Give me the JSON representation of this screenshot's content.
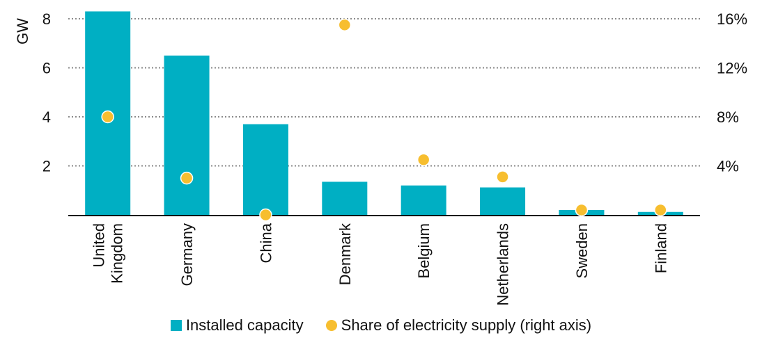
{
  "chart_data": {
    "type": "bar",
    "categories": [
      [
        "United",
        "Kingdom"
      ],
      [
        "Germany"
      ],
      [
        "China"
      ],
      [
        "Denmark"
      ],
      [
        "Belgium"
      ],
      [
        "Netherlands"
      ],
      [
        "Sweden"
      ],
      [
        "Finland"
      ]
    ],
    "series": [
      {
        "name": "Installed capacity",
        "type": "bar",
        "axis": "left",
        "color": "#00AFC3",
        "values": [
          8.3,
          6.5,
          3.7,
          1.35,
          1.2,
          1.12,
          0.2,
          0.12
        ]
      },
      {
        "name": "Share of electricity supply (right axis)",
        "type": "scatter",
        "axis": "right",
        "color": "#F7BE2F",
        "values": [
          8.0,
          3.0,
          0.0,
          15.5,
          4.5,
          3.1,
          0.4,
          0.4
        ]
      }
    ],
    "ylabel": "GW",
    "ylim": [
      0,
      8
    ],
    "yticks": [
      2,
      4,
      6,
      8
    ],
    "y2lim": [
      0,
      16
    ],
    "y2ticks": [
      4,
      8,
      12,
      16
    ],
    "y2tick_labels": [
      "4%",
      "8%",
      "12%",
      "16%"
    ],
    "grid": "dotted horizontal",
    "legend": "bottom"
  }
}
